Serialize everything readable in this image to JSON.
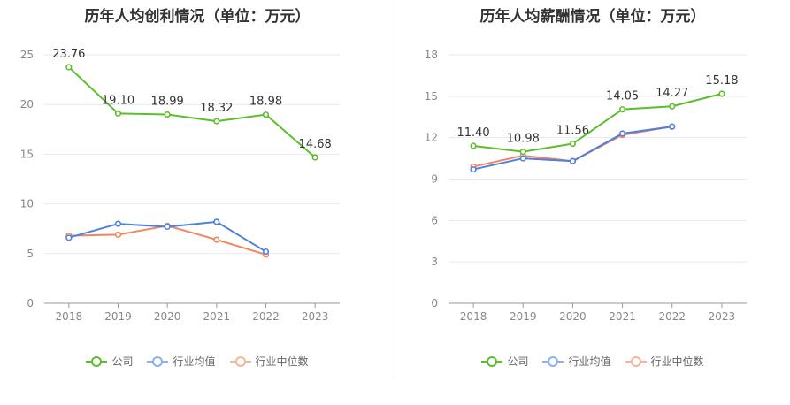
{
  "chart_data": [
    {
      "type": "line",
      "title": "历年人均创利情况（单位：万元）",
      "categories": [
        "2018",
        "2019",
        "2020",
        "2021",
        "2022",
        "2023"
      ],
      "ylim": [
        0,
        25
      ],
      "yticks": [
        0,
        5,
        10,
        15,
        20,
        25
      ],
      "grid": true,
      "legend": "bottom",
      "series": [
        {
          "name": "公司",
          "color": "#5dbd2a",
          "values": [
            23.76,
            19.1,
            18.99,
            18.32,
            18.98,
            14.68
          ],
          "labels": [
            "23.76",
            "19.10",
            "18.99",
            "18.32",
            "18.98",
            "14.68"
          ]
        },
        {
          "name": "行业均值",
          "color": "#4f7fe0",
          "values": [
            6.6,
            8.0,
            7.7,
            8.2,
            5.2,
            null
          ]
        },
        {
          "name": "行业中位数",
          "color": "#f0865e",
          "values": [
            6.8,
            6.9,
            7.8,
            6.4,
            4.9,
            null
          ]
        }
      ]
    },
    {
      "type": "line",
      "title": "历年人均薪酬情况（单位：万元）",
      "categories": [
        "2018",
        "2019",
        "2020",
        "2021",
        "2022",
        "2023"
      ],
      "ylim": [
        0,
        18
      ],
      "yticks": [
        0,
        3,
        6,
        9,
        12,
        15,
        18
      ],
      "grid": true,
      "legend": "bottom",
      "series": [
        {
          "name": "公司",
          "color": "#5dbd2a",
          "values": [
            11.4,
            10.98,
            11.56,
            14.05,
            14.27,
            15.18
          ],
          "labels": [
            "11.40",
            "10.98",
            "11.56",
            "14.05",
            "14.27",
            "15.18"
          ]
        },
        {
          "name": "行业均值",
          "color": "#4f7fe0",
          "values": [
            9.7,
            10.5,
            10.3,
            12.3,
            12.8,
            null
          ]
        },
        {
          "name": "行业中位数",
          "color": "#f0865e",
          "values": [
            9.9,
            10.7,
            10.3,
            12.2,
            12.8,
            null
          ]
        }
      ]
    }
  ]
}
